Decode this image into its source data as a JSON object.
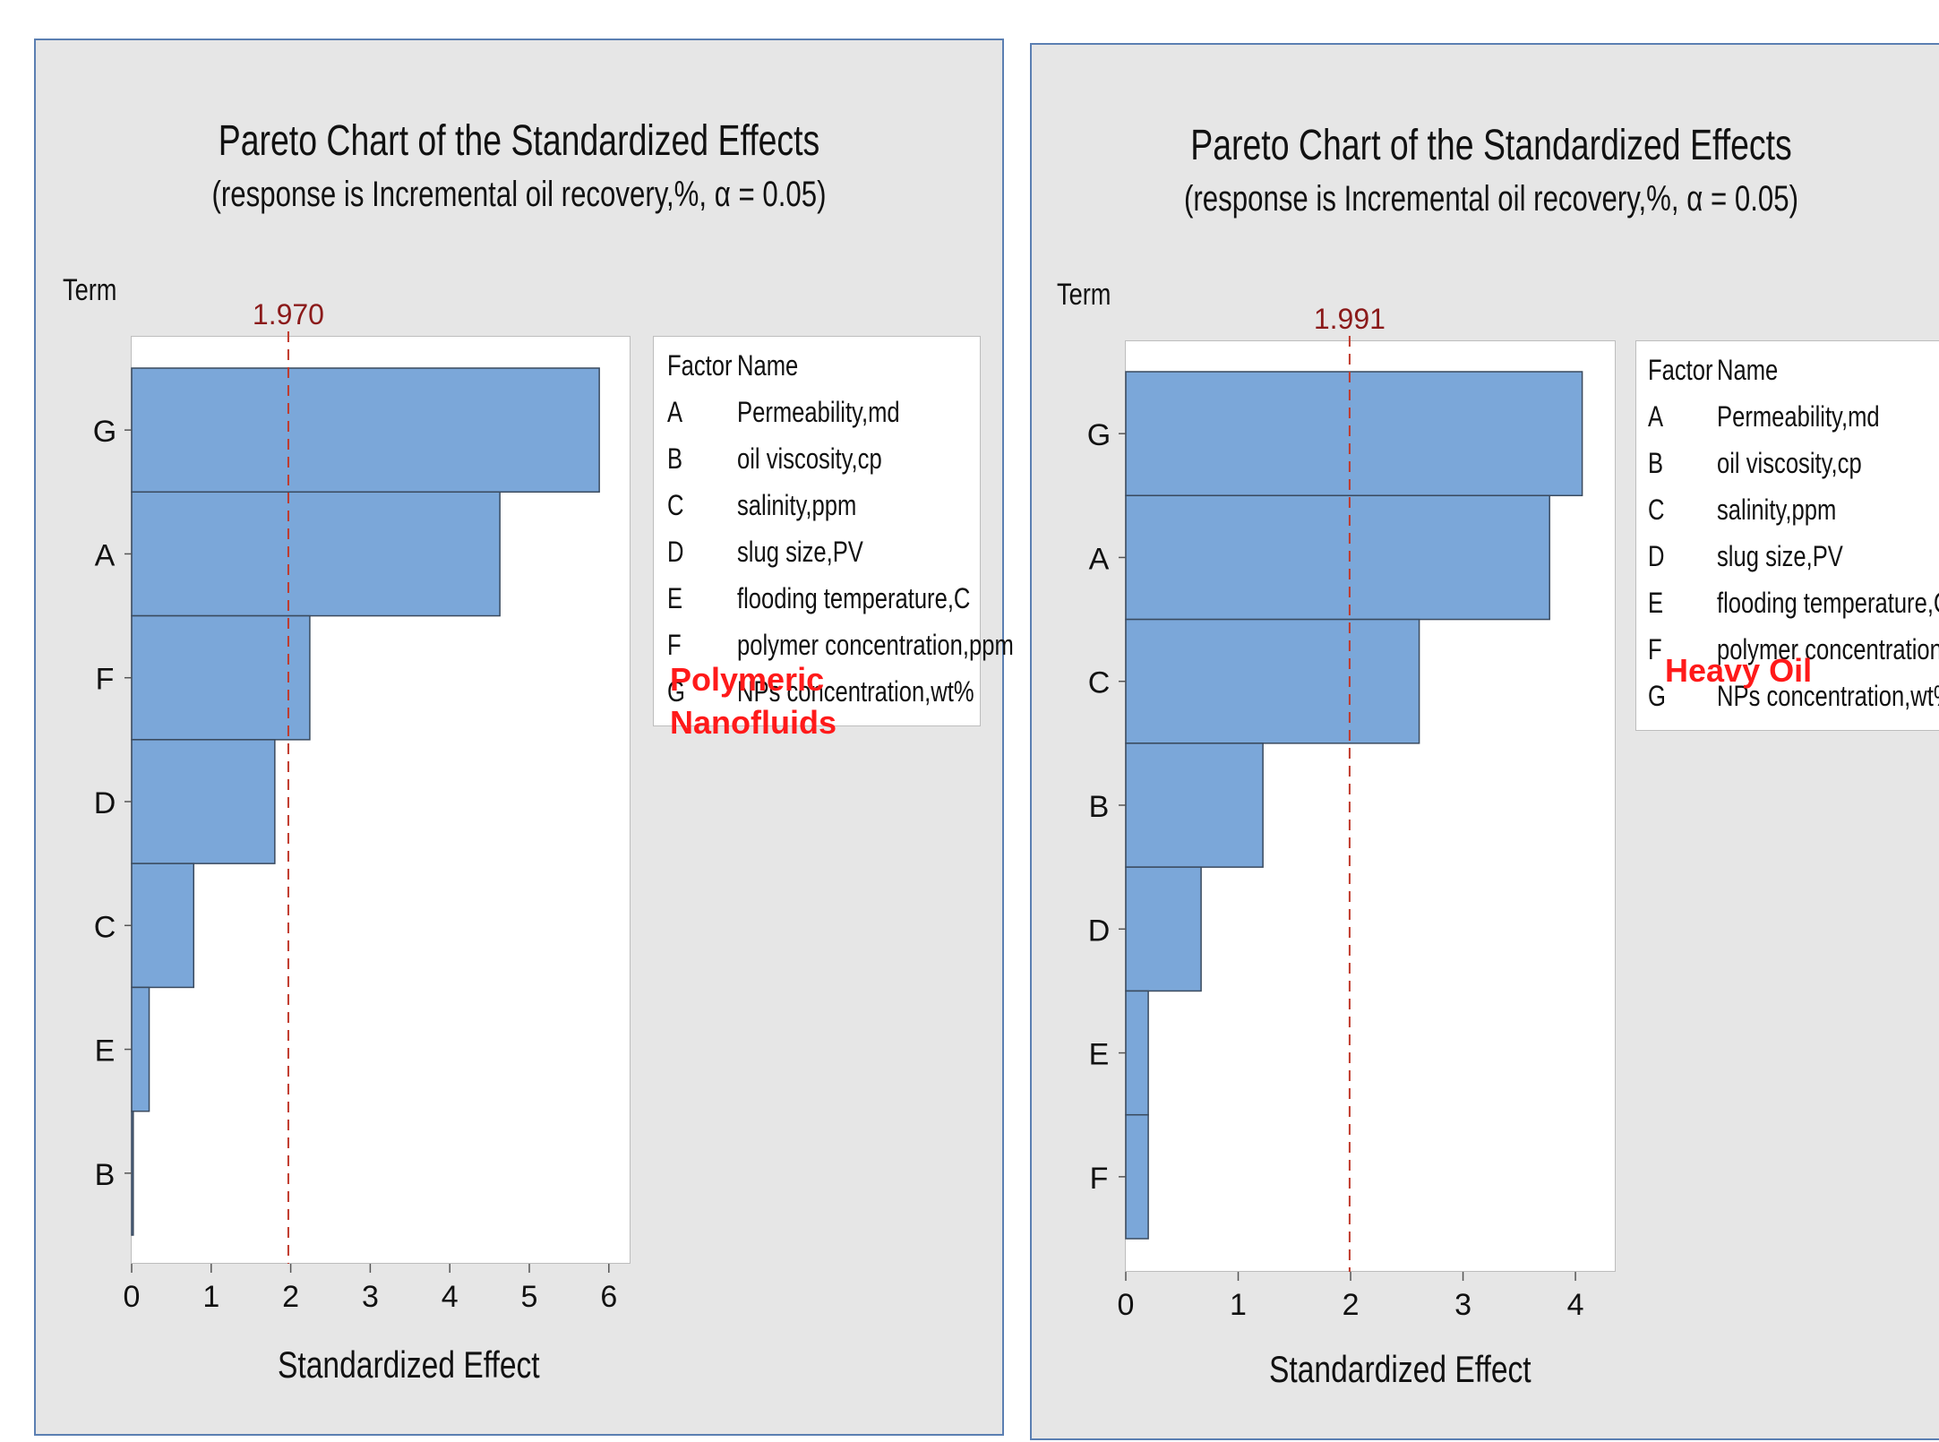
{
  "chart_data": [
    {
      "type": "bar",
      "orientation": "horizontal",
      "title": "Pareto Chart of the Standardized Effects",
      "subtitle": "(response is Incremental oil recovery,%, α = 0.05)",
      "term_label": "Term",
      "xlabel": "Standardized Effect",
      "categories": [
        "G",
        "A",
        "F",
        "D",
        "C",
        "E",
        "B"
      ],
      "values": [
        5.88,
        4.63,
        2.24,
        1.8,
        0.78,
        0.22,
        0.02
      ],
      "xlim": [
        0,
        6.25
      ],
      "xticks": [
        0,
        1,
        2,
        3,
        4,
        5,
        6
      ],
      "reference_line": {
        "value": 1.97,
        "label": "1.970"
      },
      "bar_color": "#7ba7d9",
      "ref_color": "#c0392b",
      "legend": {
        "headers": [
          "Factor",
          "Name"
        ],
        "rows": [
          [
            "A",
            "Permeability,md"
          ],
          [
            "B",
            "oil viscosity,cp"
          ],
          [
            "C",
            "salinity,ppm"
          ],
          [
            "D",
            "slug size,PV"
          ],
          [
            "E",
            "flooding temperature,C"
          ],
          [
            "F",
            "polymer concentration,ppm"
          ],
          [
            "G",
            "NPs concentration,wt%"
          ]
        ]
      },
      "overlay_label": "Polymeric\nNanofluids"
    },
    {
      "type": "bar",
      "orientation": "horizontal",
      "title": "Pareto Chart of the Standardized Effects",
      "subtitle": "(response is Incremental oil recovery,%, α = 0.05)",
      "term_label": "Term",
      "xlabel": "Standardized Effect",
      "categories": [
        "G",
        "A",
        "C",
        "B",
        "D",
        "E",
        "F"
      ],
      "values": [
        4.06,
        3.77,
        2.61,
        1.22,
        0.67,
        0.2,
        0.2
      ],
      "xlim": [
        0,
        4.35
      ],
      "xticks": [
        0,
        1,
        2,
        3,
        4
      ],
      "reference_line": {
        "value": 1.991,
        "label": "1.991"
      },
      "bar_color": "#7ba7d9",
      "ref_color": "#c0392b",
      "legend": {
        "headers": [
          "Factor",
          "Name"
        ],
        "rows": [
          [
            "A",
            "Permeability,md"
          ],
          [
            "B",
            "oil viscosity,cp"
          ],
          [
            "C",
            "salinity,ppm"
          ],
          [
            "D",
            "slug size,PV"
          ],
          [
            "E",
            "flooding temperature,C"
          ],
          [
            "F",
            "polymer concentration,ppm"
          ],
          [
            "G",
            "NPs concentration,wt%"
          ]
        ]
      },
      "overlay_label": "Heavy Oil"
    }
  ]
}
